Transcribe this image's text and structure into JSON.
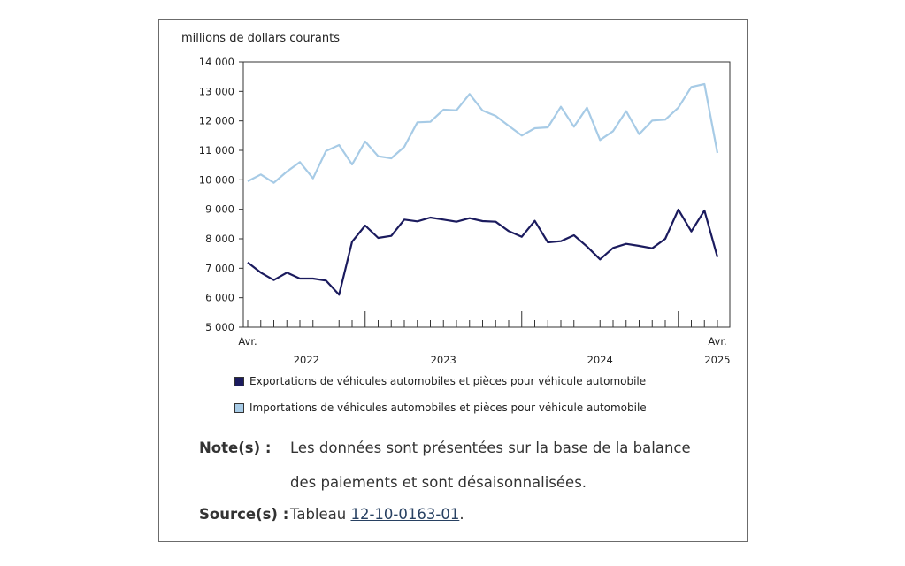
{
  "chart_data": {
    "type": "line",
    "ylabel": "millions de dollars courants",
    "ylim": [
      5000,
      14000
    ],
    "yticks": [
      5000,
      6000,
      7000,
      8000,
      9000,
      10000,
      11000,
      12000,
      13000,
      14000
    ],
    "ytick_labels": [
      "5 000",
      "6 000",
      "7 000",
      "8 000",
      "9 000",
      "10 000",
      "11 000",
      "12 000",
      "13 000",
      "14 000"
    ],
    "x_start_label": "Avr.",
    "x_end_label": "Avr.",
    "years": [
      "2022",
      "2023",
      "2024",
      "2025"
    ],
    "grid": false,
    "legend_position": "bottom",
    "series": [
      {
        "name": "Exportations de véhicules automobiles et pièces pour véhicule automobile",
        "color": "#1b1b5e",
        "values": [
          7200,
          6850,
          6600,
          6850,
          6650,
          6650,
          6580,
          6100,
          7900,
          8450,
          8030,
          8100,
          8650,
          8590,
          8720,
          8650,
          8580,
          8700,
          8600,
          8580,
          8260,
          8070,
          8610,
          7880,
          7920,
          8120,
          7740,
          7300,
          7690,
          7830,
          7760,
          7680,
          8000,
          8990,
          8250,
          8960,
          7380
        ]
      },
      {
        "name": "Importations de véhicules automobiles et pièces pour véhicule automobile",
        "color": "#a7cbe6",
        "values": [
          9950,
          10180,
          9900,
          10280,
          10600,
          10050,
          10980,
          11180,
          10520,
          11300,
          10800,
          10730,
          11120,
          11950,
          11970,
          12380,
          12360,
          12910,
          12350,
          12170,
          11830,
          11500,
          11750,
          11780,
          12480,
          11800,
          12450,
          11350,
          11650,
          12330,
          11550,
          12010,
          12040,
          12450,
          13150,
          13250,
          10910
        ]
      }
    ]
  },
  "notes": {
    "note_label": "Note(s) :",
    "note_line1": "Les données sont présentées sur la base de la balance",
    "note_line2": "des paiements et sont désaisonnalisées.",
    "source_label": "Source(s) :",
    "source_prefix": "Tableau ",
    "source_link": "12-10-0163-01",
    "source_suffix": "."
  }
}
